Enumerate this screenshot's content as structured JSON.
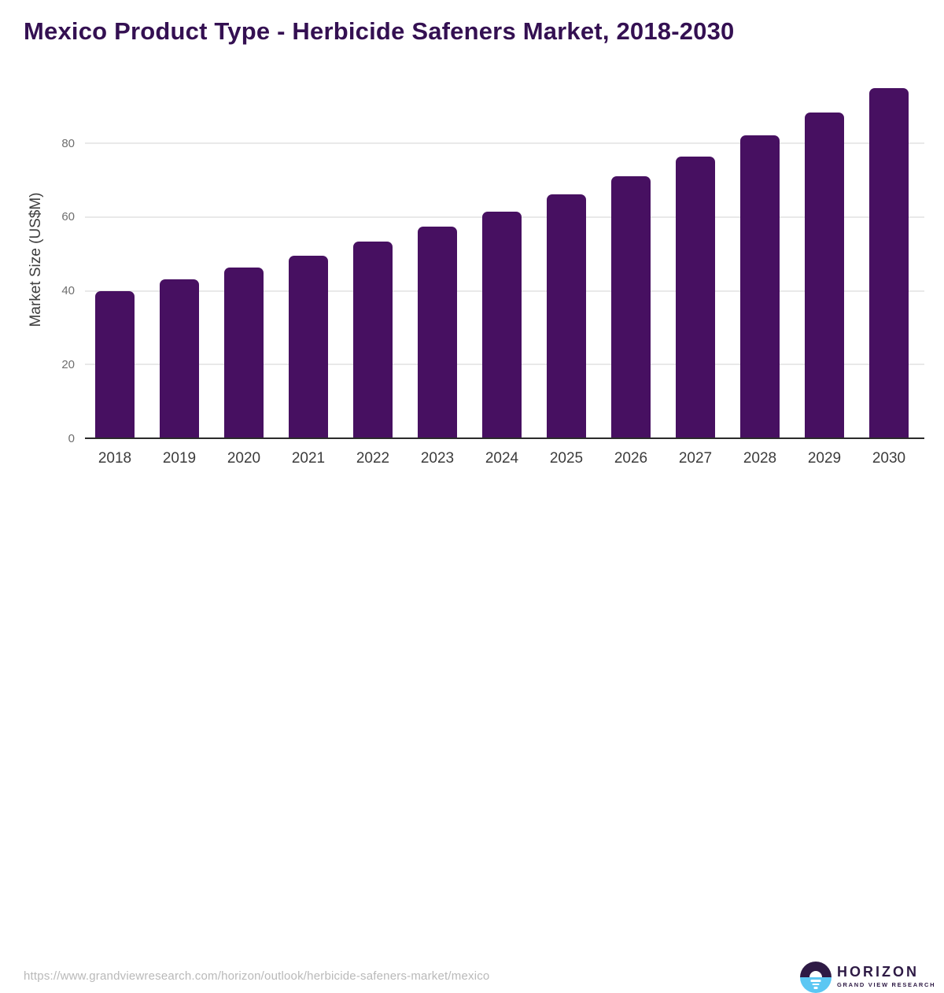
{
  "title": "Mexico Product Type - Herbicide Safeners Market, 2018-2030",
  "colors": {
    "bar": "#471061",
    "title": "#341052",
    "logo_purple": "#2e1a45",
    "logo_blue": "#5bc7f3",
    "gridline": "#e9e9e9",
    "axis_line": "#2b2b2b"
  },
  "chart_data": {
    "type": "bar",
    "title": "Mexico Product Type - Herbicide Safeners Market, 2018-2030",
    "categories": [
      "2018",
      "2019",
      "2020",
      "2021",
      "2022",
      "2023",
      "2024",
      "2025",
      "2026",
      "2027",
      "2028",
      "2029",
      "2030"
    ],
    "values": [
      40.0,
      43.0,
      46.2,
      49.6,
      53.3,
      57.3,
      61.4,
      66.2,
      71.1,
      76.4,
      82.1,
      88.3,
      94.9
    ],
    "xlabel": "",
    "ylabel": "Market Size (US$M)",
    "yticks": [
      0,
      20,
      40,
      60,
      80
    ],
    "ylim": [
      0,
      98
    ],
    "grid": true,
    "legend": "none",
    "bar_color": "#471061"
  },
  "footer": {
    "source_url": "https://www.grandviewresearch.com/horizon/outlook/herbicide-safeners-market/mexico",
    "logo": {
      "brand": "HORIZON",
      "subbrand": "GRAND VIEW RESEARCH"
    }
  }
}
